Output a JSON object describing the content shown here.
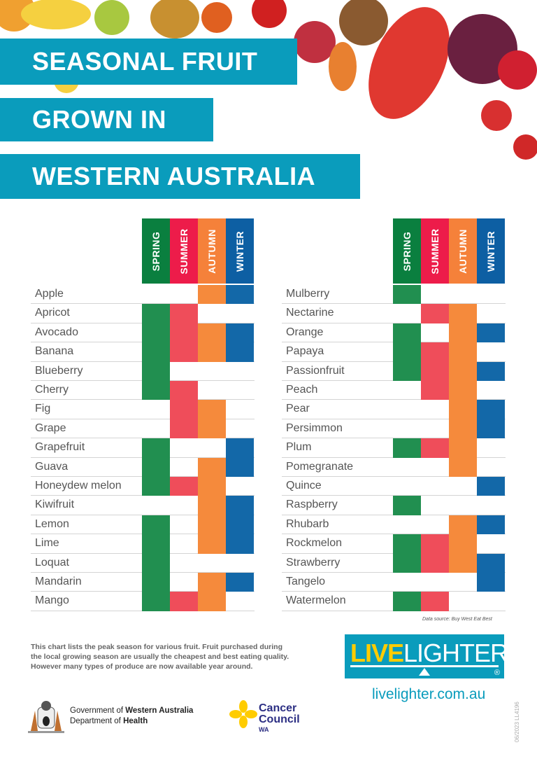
{
  "title_lines": [
    "SEASONAL FRUIT",
    "GROWN IN",
    "WESTERN AUSTRALIA"
  ],
  "seasons": [
    {
      "label": "SPRING",
      "header_color": "#0a7f3f",
      "cell_color": "#218f50"
    },
    {
      "label": "SUMMER",
      "header_color": "#ed1c4a",
      "cell_color": "#ef4d5a"
    },
    {
      "label": "AUTUMN",
      "header_color": "#f5813a",
      "cell_color": "#f58a3c"
    },
    {
      "label": "WINTER",
      "header_color": "#0d5fa3",
      "cell_color": "#1368a8"
    }
  ],
  "tables": [
    {
      "fruits": [
        {
          "name": "Apple",
          "in_season": [
            0,
            0,
            1,
            1
          ]
        },
        {
          "name": "Apricot",
          "in_season": [
            1,
            1,
            0,
            0
          ]
        },
        {
          "name": "Avocado",
          "in_season": [
            1,
            1,
            1,
            1
          ]
        },
        {
          "name": "Banana",
          "in_season": [
            1,
            1,
            1,
            1
          ]
        },
        {
          "name": "Blueberry",
          "in_season": [
            1,
            0,
            0,
            0
          ]
        },
        {
          "name": "Cherry",
          "in_season": [
            1,
            1,
            0,
            0
          ]
        },
        {
          "name": "Fig",
          "in_season": [
            0,
            1,
            1,
            0
          ]
        },
        {
          "name": "Grape",
          "in_season": [
            0,
            1,
            1,
            0
          ]
        },
        {
          "name": "Grapefruit",
          "in_season": [
            1,
            0,
            0,
            1
          ]
        },
        {
          "name": "Guava",
          "in_season": [
            1,
            0,
            1,
            1
          ]
        },
        {
          "name": "Honeydew melon",
          "in_season": [
            1,
            1,
            1,
            0
          ]
        },
        {
          "name": "Kiwifruit",
          "in_season": [
            0,
            0,
            1,
            1
          ]
        },
        {
          "name": "Lemon",
          "in_season": [
            1,
            0,
            1,
            1
          ]
        },
        {
          "name": "Lime",
          "in_season": [
            1,
            0,
            1,
            1
          ]
        },
        {
          "name": "Loquat",
          "in_season": [
            1,
            0,
            0,
            0
          ]
        },
        {
          "name": "Mandarin",
          "in_season": [
            1,
            0,
            1,
            1
          ]
        },
        {
          "name": "Mango",
          "in_season": [
            1,
            1,
            1,
            0
          ]
        }
      ]
    },
    {
      "fruits": [
        {
          "name": "Mulberry",
          "in_season": [
            1,
            0,
            0,
            0
          ]
        },
        {
          "name": "Nectarine",
          "in_season": [
            0,
            1,
            1,
            0
          ]
        },
        {
          "name": "Orange",
          "in_season": [
            1,
            0,
            1,
            1
          ]
        },
        {
          "name": "Papaya",
          "in_season": [
            1,
            1,
            1,
            0
          ]
        },
        {
          "name": "Passionfruit",
          "in_season": [
            1,
            1,
            1,
            1
          ]
        },
        {
          "name": "Peach",
          "in_season": [
            0,
            1,
            1,
            0
          ]
        },
        {
          "name": "Pear",
          "in_season": [
            0,
            0,
            1,
            1
          ]
        },
        {
          "name": "Persimmon",
          "in_season": [
            0,
            0,
            1,
            1
          ]
        },
        {
          "name": "Plum",
          "in_season": [
            1,
            1,
            1,
            0
          ]
        },
        {
          "name": "Pomegranate",
          "in_season": [
            0,
            0,
            1,
            0
          ]
        },
        {
          "name": "Quince",
          "in_season": [
            0,
            0,
            0,
            1
          ]
        },
        {
          "name": "Raspberry",
          "in_season": [
            1,
            0,
            0,
            0
          ]
        },
        {
          "name": "Rhubarb",
          "in_season": [
            0,
            0,
            1,
            1
          ]
        },
        {
          "name": "Rockmelon",
          "in_season": [
            1,
            1,
            1,
            0
          ]
        },
        {
          "name": "Strawberry",
          "in_season": [
            1,
            1,
            1,
            1
          ]
        },
        {
          "name": "Tangelo",
          "in_season": [
            0,
            0,
            0,
            1
          ]
        },
        {
          "name": "Watermelon",
          "in_season": [
            1,
            1,
            0,
            0
          ]
        }
      ]
    }
  ],
  "data_source": "Data source: Buy West Eat Best",
  "note_lines": [
    "This chart lists the peak season for various fruit. Fruit purchased during",
    "the local growing season are usually the cheapest and best eating quality.",
    "However many types of produce are now available year around."
  ],
  "livelighter": {
    "live": "LIVE",
    "lighter": "LIGHTER",
    "registered": "®",
    "url": "livelighter.com.au"
  },
  "government": {
    "line1_prefix": "Government of ",
    "line1_bold": "Western Australia",
    "line2_prefix": "Department of ",
    "line2_bold": "Health"
  },
  "cancer_council": {
    "line1": "Cancer",
    "line2": "Council",
    "line3": "WA"
  },
  "print_code": "06/2023  LL4196",
  "colors": {
    "brand_teal": "#0a9cbc",
    "live_yellow": "#ffcc00"
  }
}
